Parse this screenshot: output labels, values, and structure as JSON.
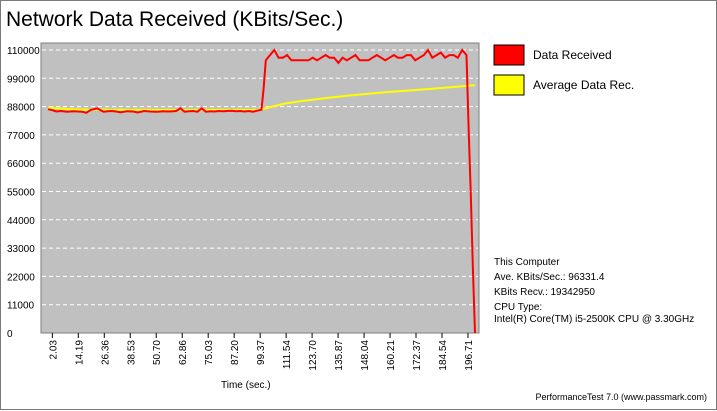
{
  "chart_data": {
    "type": "line",
    "title": "Network Data Received (KBits/Sec.)",
    "xlabel": "Time (sec.)",
    "ylabel": "",
    "ylim": [
      0,
      110000
    ],
    "xlim": [
      0,
      200
    ],
    "yticks": [
      0,
      11000,
      22000,
      33000,
      44000,
      55000,
      66000,
      77000,
      88000,
      99000,
      110000
    ],
    "ytick_labels": [
      "0",
      "11000",
      "22000",
      "33000",
      "44000",
      "55000",
      "66000",
      "77000",
      "88000",
      "99000",
      "110000"
    ],
    "xticks": [
      2.03,
      14.19,
      26.36,
      38.53,
      50.7,
      62.86,
      75.03,
      87.2,
      99.37,
      111.54,
      123.7,
      135.87,
      148.04,
      160.21,
      172.37,
      184.54,
      196.71
    ],
    "xtick_labels": [
      "2.03",
      "14.19",
      "26.36",
      "38.53",
      "50.70",
      "62.86",
      "75.03",
      "87.20",
      "99.37",
      "111.54",
      "123.70",
      "135.87",
      "148.04",
      "160.21",
      "172.37",
      "184.54",
      "196.71"
    ],
    "grid": true,
    "legend_position": "right",
    "series": [
      {
        "name": "Data Received",
        "color": "#ff0000",
        "x": [
          0,
          2,
          4,
          6,
          9,
          12,
          14,
          16,
          18,
          20,
          23,
          26,
          28,
          30,
          32,
          34,
          37,
          40,
          42,
          45,
          48,
          51,
          54,
          57,
          60,
          62,
          64,
          66,
          68,
          70,
          72,
          74,
          76,
          78,
          80,
          82,
          84,
          86,
          88,
          90,
          92,
          94,
          96,
          98,
          100,
          101,
          102,
          104,
          106,
          108,
          110,
          112,
          114,
          116,
          118,
          120,
          122,
          124,
          126,
          128,
          130,
          132,
          134,
          136,
          138,
          140,
          142,
          144,
          146,
          148,
          150,
          152,
          154,
          156,
          158,
          160,
          162,
          164,
          166,
          168,
          170,
          172,
          174,
          176,
          178,
          180,
          182,
          184,
          186,
          188,
          190,
          192,
          194,
          196,
          197,
          198,
          199,
          200
        ],
        "values": [
          87000,
          86600,
          86100,
          86300,
          86000,
          86200,
          86100,
          86000,
          85600,
          86700,
          87300,
          86000,
          86200,
          86300,
          86100,
          85800,
          86200,
          86100,
          85700,
          86300,
          86100,
          86000,
          86200,
          86100,
          86300,
          87300,
          86000,
          86200,
          86300,
          86000,
          87300,
          86000,
          86200,
          86100,
          86300,
          86200,
          86300,
          86400,
          86200,
          86300,
          86100,
          86300,
          86000,
          86400,
          86800,
          95000,
          106000,
          108000,
          110000,
          107000,
          107000,
          108000,
          106000,
          106000,
          106000,
          106000,
          106000,
          107000,
          106000,
          107000,
          108000,
          107000,
          107000,
          105000,
          107000,
          106000,
          107000,
          108000,
          106000,
          106000,
          106000,
          107000,
          108000,
          107000,
          106000,
          107000,
          108000,
          107000,
          107000,
          108000,
          108000,
          106000,
          107000,
          108000,
          110000,
          107000,
          108000,
          109000,
          107000,
          108000,
          108000,
          107000,
          110000,
          108000,
          80000,
          55000,
          25000,
          0
        ]
      },
      {
        "name": "Average Data Rec.",
        "color": "#ffff00",
        "x": [
          0,
          5,
          10,
          20,
          30,
          40,
          50,
          60,
          70,
          80,
          90,
          99,
          105,
          110,
          115,
          120,
          130,
          140,
          150,
          160,
          170,
          180,
          190,
          198,
          200
        ],
        "values": [
          87500,
          87300,
          87000,
          86800,
          86800,
          86700,
          86700,
          86700,
          86700,
          86700,
          86700,
          86700,
          88000,
          89000,
          89700,
          90300,
          91300,
          92200,
          93000,
          93700,
          94300,
          94900,
          95600,
          96200,
          96300
        ]
      }
    ]
  },
  "info": {
    "computer": "This Computer",
    "ave": "Ave. KBits/Sec.: 96331.4",
    "recv": "KBits Recv.: 19342950",
    "cpu_type": "CPU Type:",
    "cpu": "Intel(R) Core(TM) i5-2500K CPU @ 3.30GHz"
  },
  "footer": "PerformanceTest 7.0 (www.passmark.com)"
}
